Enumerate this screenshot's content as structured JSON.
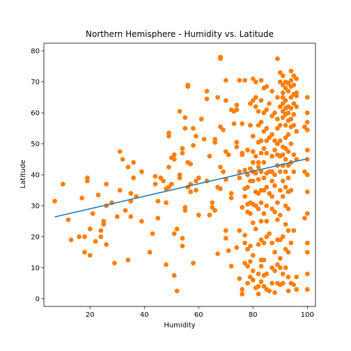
{
  "chart_data": {
    "type": "scatter",
    "title": "Northern Hemisphere - Humidity vs. Latitude",
    "xlabel": "Humidity",
    "ylabel": "Latitude",
    "xlim": [
      3,
      103
    ],
    "ylim": [
      -2.5,
      82.5
    ],
    "xticks": [
      20,
      40,
      60,
      80,
      100
    ],
    "yticks": [
      0,
      10,
      20,
      30,
      40,
      50,
      60,
      70,
      80
    ],
    "grid": false,
    "colors": {
      "points": "#ff7f0e",
      "line": "#1f77b4",
      "axes": "#000000"
    },
    "regression_line": {
      "x": [
        7,
        100
      ],
      "y": [
        26.4,
        45.2
      ]
    },
    "points": [
      [
        7,
        31.5
      ],
      [
        10,
        37
      ],
      [
        12,
        25.5
      ],
      [
        13,
        19
      ],
      [
        16,
        20
      ],
      [
        17,
        32.5
      ],
      [
        18,
        20
      ],
      [
        18,
        15
      ],
      [
        19,
        39
      ],
      [
        19,
        38
      ],
      [
        20,
        22.5
      ],
      [
        20,
        14
      ],
      [
        21,
        27.5
      ],
      [
        22,
        18.5
      ],
      [
        23,
        33.5
      ],
      [
        24,
        20
      ],
      [
        24,
        22
      ],
      [
        25,
        24
      ],
      [
        25,
        25
      ],
      [
        26,
        37
      ],
      [
        26,
        30
      ],
      [
        26,
        17.5
      ],
      [
        28,
        31
      ],
      [
        29,
        11.5
      ],
      [
        30,
        26.5
      ],
      [
        31,
        35
      ],
      [
        31,
        47.5
      ],
      [
        32,
        45
      ],
      [
        33,
        28.5
      ],
      [
        34,
        12.5
      ],
      [
        34,
        42.5
      ],
      [
        35,
        34
      ],
      [
        35,
        26.5
      ],
      [
        35,
        31.5
      ],
      [
        36,
        39
      ],
      [
        36,
        44
      ],
      [
        37,
        33
      ],
      [
        39,
        41
      ],
      [
        39,
        25
      ],
      [
        42,
        15
      ],
      [
        43,
        21
      ],
      [
        44,
        37
      ],
      [
        44,
        39.5
      ],
      [
        45,
        26
      ],
      [
        45,
        31.5
      ],
      [
        46,
        39
      ],
      [
        47,
        38
      ],
      [
        48,
        35.5
      ],
      [
        48,
        11
      ],
      [
        48,
        31
      ],
      [
        49,
        36
      ],
      [
        49,
        53.5
      ],
      [
        49,
        52.5
      ],
      [
        49,
        42.5
      ],
      [
        50,
        37
      ],
      [
        50,
        45.5
      ],
      [
        51,
        45
      ],
      [
        51,
        46.5
      ],
      [
        51,
        21
      ],
      [
        51,
        7.5
      ],
      [
        52,
        2.5
      ],
      [
        52,
        22.5
      ],
      [
        53,
        39
      ],
      [
        53,
        40
      ],
      [
        53,
        60.5
      ],
      [
        54,
        47
      ],
      [
        54,
        48.5
      ],
      [
        54,
        17
      ],
      [
        54,
        19.5
      ],
      [
        55,
        55
      ],
      [
        55,
        58.5
      ],
      [
        55,
        28.5
      ],
      [
        55,
        29.5
      ],
      [
        56,
        36
      ],
      [
        56,
        44
      ],
      [
        56,
        69
      ],
      [
        56,
        68.5
      ],
      [
        57,
        34.5
      ],
      [
        57,
        37
      ],
      [
        57,
        43.5
      ],
      [
        58,
        49.5
      ],
      [
        58,
        55
      ],
      [
        58,
        11.5
      ],
      [
        59,
        52.5
      ],
      [
        59,
        35
      ],
      [
        59,
        38
      ],
      [
        60,
        27
      ],
      [
        60,
        39
      ],
      [
        61,
        58
      ],
      [
        62,
        51.5
      ],
      [
        63,
        38
      ],
      [
        63,
        64.5
      ],
      [
        63,
        67
      ],
      [
        64,
        27
      ],
      [
        64,
        46
      ],
      [
        65,
        29.5
      ],
      [
        65,
        31
      ],
      [
        66,
        28.5
      ],
      [
        66,
        51.5
      ],
      [
        66,
        50.5
      ],
      [
        67,
        14.5
      ],
      [
        67,
        36
      ],
      [
        67,
        65
      ],
      [
        68,
        35.5
      ],
      [
        68,
        42.5
      ],
      [
        68,
        55.5
      ],
      [
        68,
        78
      ],
      [
        68,
        77.5
      ],
      [
        69,
        41
      ],
      [
        69,
        54.5
      ],
      [
        70,
        38.5
      ],
      [
        70,
        47.5
      ],
      [
        70,
        22
      ],
      [
        70,
        19.5
      ],
      [
        70,
        70.5
      ],
      [
        70,
        64
      ],
      [
        71,
        15.5
      ],
      [
        71,
        46.5
      ],
      [
        72,
        32.5
      ],
      [
        72,
        34
      ],
      [
        72,
        10.5
      ],
      [
        72,
        61
      ],
      [
        73,
        56.5
      ],
      [
        73,
        60.5
      ],
      [
        74,
        49
      ],
      [
        74,
        50.5
      ],
      [
        74,
        62.5
      ],
      [
        74,
        61
      ],
      [
        74,
        16.5
      ],
      [
        75,
        6.5
      ],
      [
        75,
        22
      ],
      [
        75,
        41
      ],
      [
        75,
        39
      ],
      [
        75,
        70.5
      ],
      [
        76,
        47
      ],
      [
        76,
        46.5
      ],
      [
        76,
        29.5
      ],
      [
        76,
        3
      ],
      [
        76,
        1.5
      ],
      [
        76,
        56.5
      ],
      [
        77,
        70.5
      ],
      [
        77,
        41.5
      ],
      [
        77,
        35.5
      ],
      [
        77,
        33
      ],
      [
        77,
        20.5
      ],
      [
        77,
        18
      ],
      [
        77,
        11.5
      ],
      [
        78,
        48
      ],
      [
        78,
        40
      ],
      [
        78,
        36
      ],
      [
        78,
        30.5
      ],
      [
        78,
        28
      ],
      [
        78,
        16
      ],
      [
        78,
        10.5
      ],
      [
        78,
        5
      ],
      [
        79,
        63
      ],
      [
        79,
        56
      ],
      [
        79,
        42
      ],
      [
        79,
        38
      ],
      [
        79,
        31
      ],
      [
        79,
        27.5
      ],
      [
        79,
        17
      ],
      [
        79,
        12
      ],
      [
        79,
        7
      ],
      [
        80,
        71
      ],
      [
        80,
        64
      ],
      [
        80,
        52.5
      ],
      [
        80,
        47.5
      ],
      [
        80,
        44
      ],
      [
        80,
        41
      ],
      [
        80,
        38
      ],
      [
        80,
        30.5
      ],
      [
        80,
        24.5
      ],
      [
        80,
        14
      ],
      [
        80,
        9
      ],
      [
        80,
        6
      ],
      [
        81,
        70
      ],
      [
        81,
        65
      ],
      [
        81,
        62
      ],
      [
        81,
        46
      ],
      [
        81,
        40.5
      ],
      [
        81,
        34.5
      ],
      [
        81,
        30
      ],
      [
        81,
        22.5
      ],
      [
        81,
        3.5
      ],
      [
        82,
        60.5
      ],
      [
        82,
        56
      ],
      [
        82,
        50.5
      ],
      [
        82,
        44
      ],
      [
        82,
        42.5
      ],
      [
        82,
        38.5
      ],
      [
        82,
        34
      ],
      [
        82,
        29
      ],
      [
        82,
        17.5
      ],
      [
        82,
        8
      ],
      [
        82,
        4
      ],
      [
        82,
        1.5
      ],
      [
        83,
        70.5
      ],
      [
        83,
        64
      ],
      [
        83,
        57
      ],
      [
        83,
        51
      ],
      [
        83,
        47
      ],
      [
        83,
        41
      ],
      [
        83,
        35
      ],
      [
        83,
        31
      ],
      [
        83,
        25
      ],
      [
        83,
        19
      ],
      [
        83,
        12.5
      ],
      [
        83,
        10.5
      ],
      [
        83,
        5.5
      ],
      [
        84,
        68
      ],
      [
        84,
        60
      ],
      [
        84,
        54
      ],
      [
        84,
        48.5
      ],
      [
        84,
        44
      ],
      [
        84,
        39
      ],
      [
        84,
        35
      ],
      [
        84,
        27.5
      ],
      [
        84,
        18
      ],
      [
        84,
        12.5
      ],
      [
        84,
        7.5
      ],
      [
        84,
        4
      ],
      [
        85,
        68.5
      ],
      [
        85,
        61
      ],
      [
        85,
        55
      ],
      [
        85,
        51
      ],
      [
        85,
        47
      ],
      [
        85,
        40.5
      ],
      [
        85,
        36
      ],
      [
        85,
        30
      ],
      [
        85,
        25
      ],
      [
        85,
        20
      ],
      [
        85,
        8
      ],
      [
        85,
        3
      ],
      [
        86,
        63
      ],
      [
        86,
        52
      ],
      [
        86,
        41
      ],
      [
        86,
        34
      ],
      [
        86,
        21
      ],
      [
        86,
        2.5
      ],
      [
        87,
        67
      ],
      [
        87,
        59
      ],
      [
        87,
        53
      ],
      [
        87,
        46
      ],
      [
        87,
        41
      ],
      [
        87,
        38
      ],
      [
        87,
        33
      ],
      [
        87,
        29
      ],
      [
        87,
        18
      ],
      [
        87,
        10
      ],
      [
        87,
        5
      ],
      [
        88,
        60
      ],
      [
        88,
        51
      ],
      [
        88,
        48
      ],
      [
        88,
        40
      ],
      [
        88,
        36.5
      ],
      [
        88,
        28
      ],
      [
        88,
        15
      ],
      [
        88,
        9
      ],
      [
        88,
        2
      ],
      [
        89,
        77.5
      ],
      [
        89,
        65
      ],
      [
        89,
        58
      ],
      [
        89,
        55
      ],
      [
        89,
        50
      ],
      [
        89,
        46.5
      ],
      [
        89,
        43
      ],
      [
        89,
        31
      ],
      [
        89,
        25.5
      ],
      [
        89,
        19
      ],
      [
        89,
        11
      ],
      [
        89,
        5
      ],
      [
        90,
        73
      ],
      [
        90,
        70
      ],
      [
        90,
        62
      ],
      [
        90,
        56
      ],
      [
        90,
        51
      ],
      [
        90,
        46
      ],
      [
        90,
        41
      ],
      [
        90,
        35
      ],
      [
        90,
        27
      ],
      [
        90,
        19
      ],
      [
        90,
        13
      ],
      [
        90,
        10
      ],
      [
        90,
        4.5
      ],
      [
        91,
        72
      ],
      [
        91,
        69
      ],
      [
        91,
        66.5
      ],
      [
        91,
        65
      ],
      [
        91,
        63
      ],
      [
        91,
        60.5
      ],
      [
        91,
        58.5
      ],
      [
        91,
        49
      ],
      [
        91,
        46.5
      ],
      [
        91,
        43
      ],
      [
        91,
        38
      ],
      [
        91,
        33
      ],
      [
        91,
        20
      ],
      [
        91,
        8
      ],
      [
        91,
        5
      ],
      [
        92,
        70
      ],
      [
        92,
        68
      ],
      [
        92,
        64
      ],
      [
        92,
        61.5
      ],
      [
        92,
        59.5
      ],
      [
        92,
        56
      ],
      [
        92,
        52
      ],
      [
        92,
        48.5
      ],
      [
        92,
        45
      ],
      [
        92,
        41
      ],
      [
        92,
        36
      ],
      [
        92,
        30
      ],
      [
        92,
        24
      ],
      [
        92,
        16
      ],
      [
        92,
        10
      ],
      [
        93,
        69.5
      ],
      [
        93,
        67
      ],
      [
        93,
        62
      ],
      [
        93,
        60
      ],
      [
        93,
        57.5
      ],
      [
        93,
        53
      ],
      [
        93,
        47.5
      ],
      [
        93,
        43
      ],
      [
        93,
        39
      ],
      [
        93,
        34.5
      ],
      [
        93,
        29
      ],
      [
        93,
        22
      ],
      [
        93,
        15
      ],
      [
        93,
        7
      ],
      [
        93,
        2.5
      ],
      [
        94,
        73.5
      ],
      [
        94,
        70.5
      ],
      [
        94,
        68.5
      ],
      [
        94,
        65
      ],
      [
        94,
        61.5
      ],
      [
        94,
        58
      ],
      [
        94,
        55.5
      ],
      [
        94,
        50
      ],
      [
        94,
        44
      ],
      [
        94,
        35
      ],
      [
        94,
        18
      ],
      [
        94,
        5
      ],
      [
        95,
        72
      ],
      [
        95,
        69
      ],
      [
        95,
        66
      ],
      [
        95,
        63
      ],
      [
        95,
        59.5
      ],
      [
        95,
        56
      ],
      [
        95,
        46.5
      ],
      [
        95,
        41
      ],
      [
        95,
        22
      ],
      [
        95,
        4.5
      ],
      [
        96,
        71
      ],
      [
        96,
        66.5
      ],
      [
        96,
        65.5
      ],
      [
        96,
        62
      ],
      [
        96,
        54
      ],
      [
        96,
        45
      ],
      [
        96,
        7
      ],
      [
        96,
        3
      ],
      [
        99,
        55.5
      ],
      [
        99,
        41
      ],
      [
        99,
        26
      ],
      [
        100,
        65
      ],
      [
        100,
        60
      ],
      [
        100,
        57
      ],
      [
        100,
        54.5
      ],
      [
        100,
        48
      ],
      [
        100,
        45
      ],
      [
        100,
        40
      ],
      [
        100,
        34.5
      ],
      [
        100,
        27.5
      ],
      [
        100,
        18
      ],
      [
        100,
        15
      ],
      [
        100,
        8
      ],
      [
        100,
        3
      ]
    ]
  }
}
